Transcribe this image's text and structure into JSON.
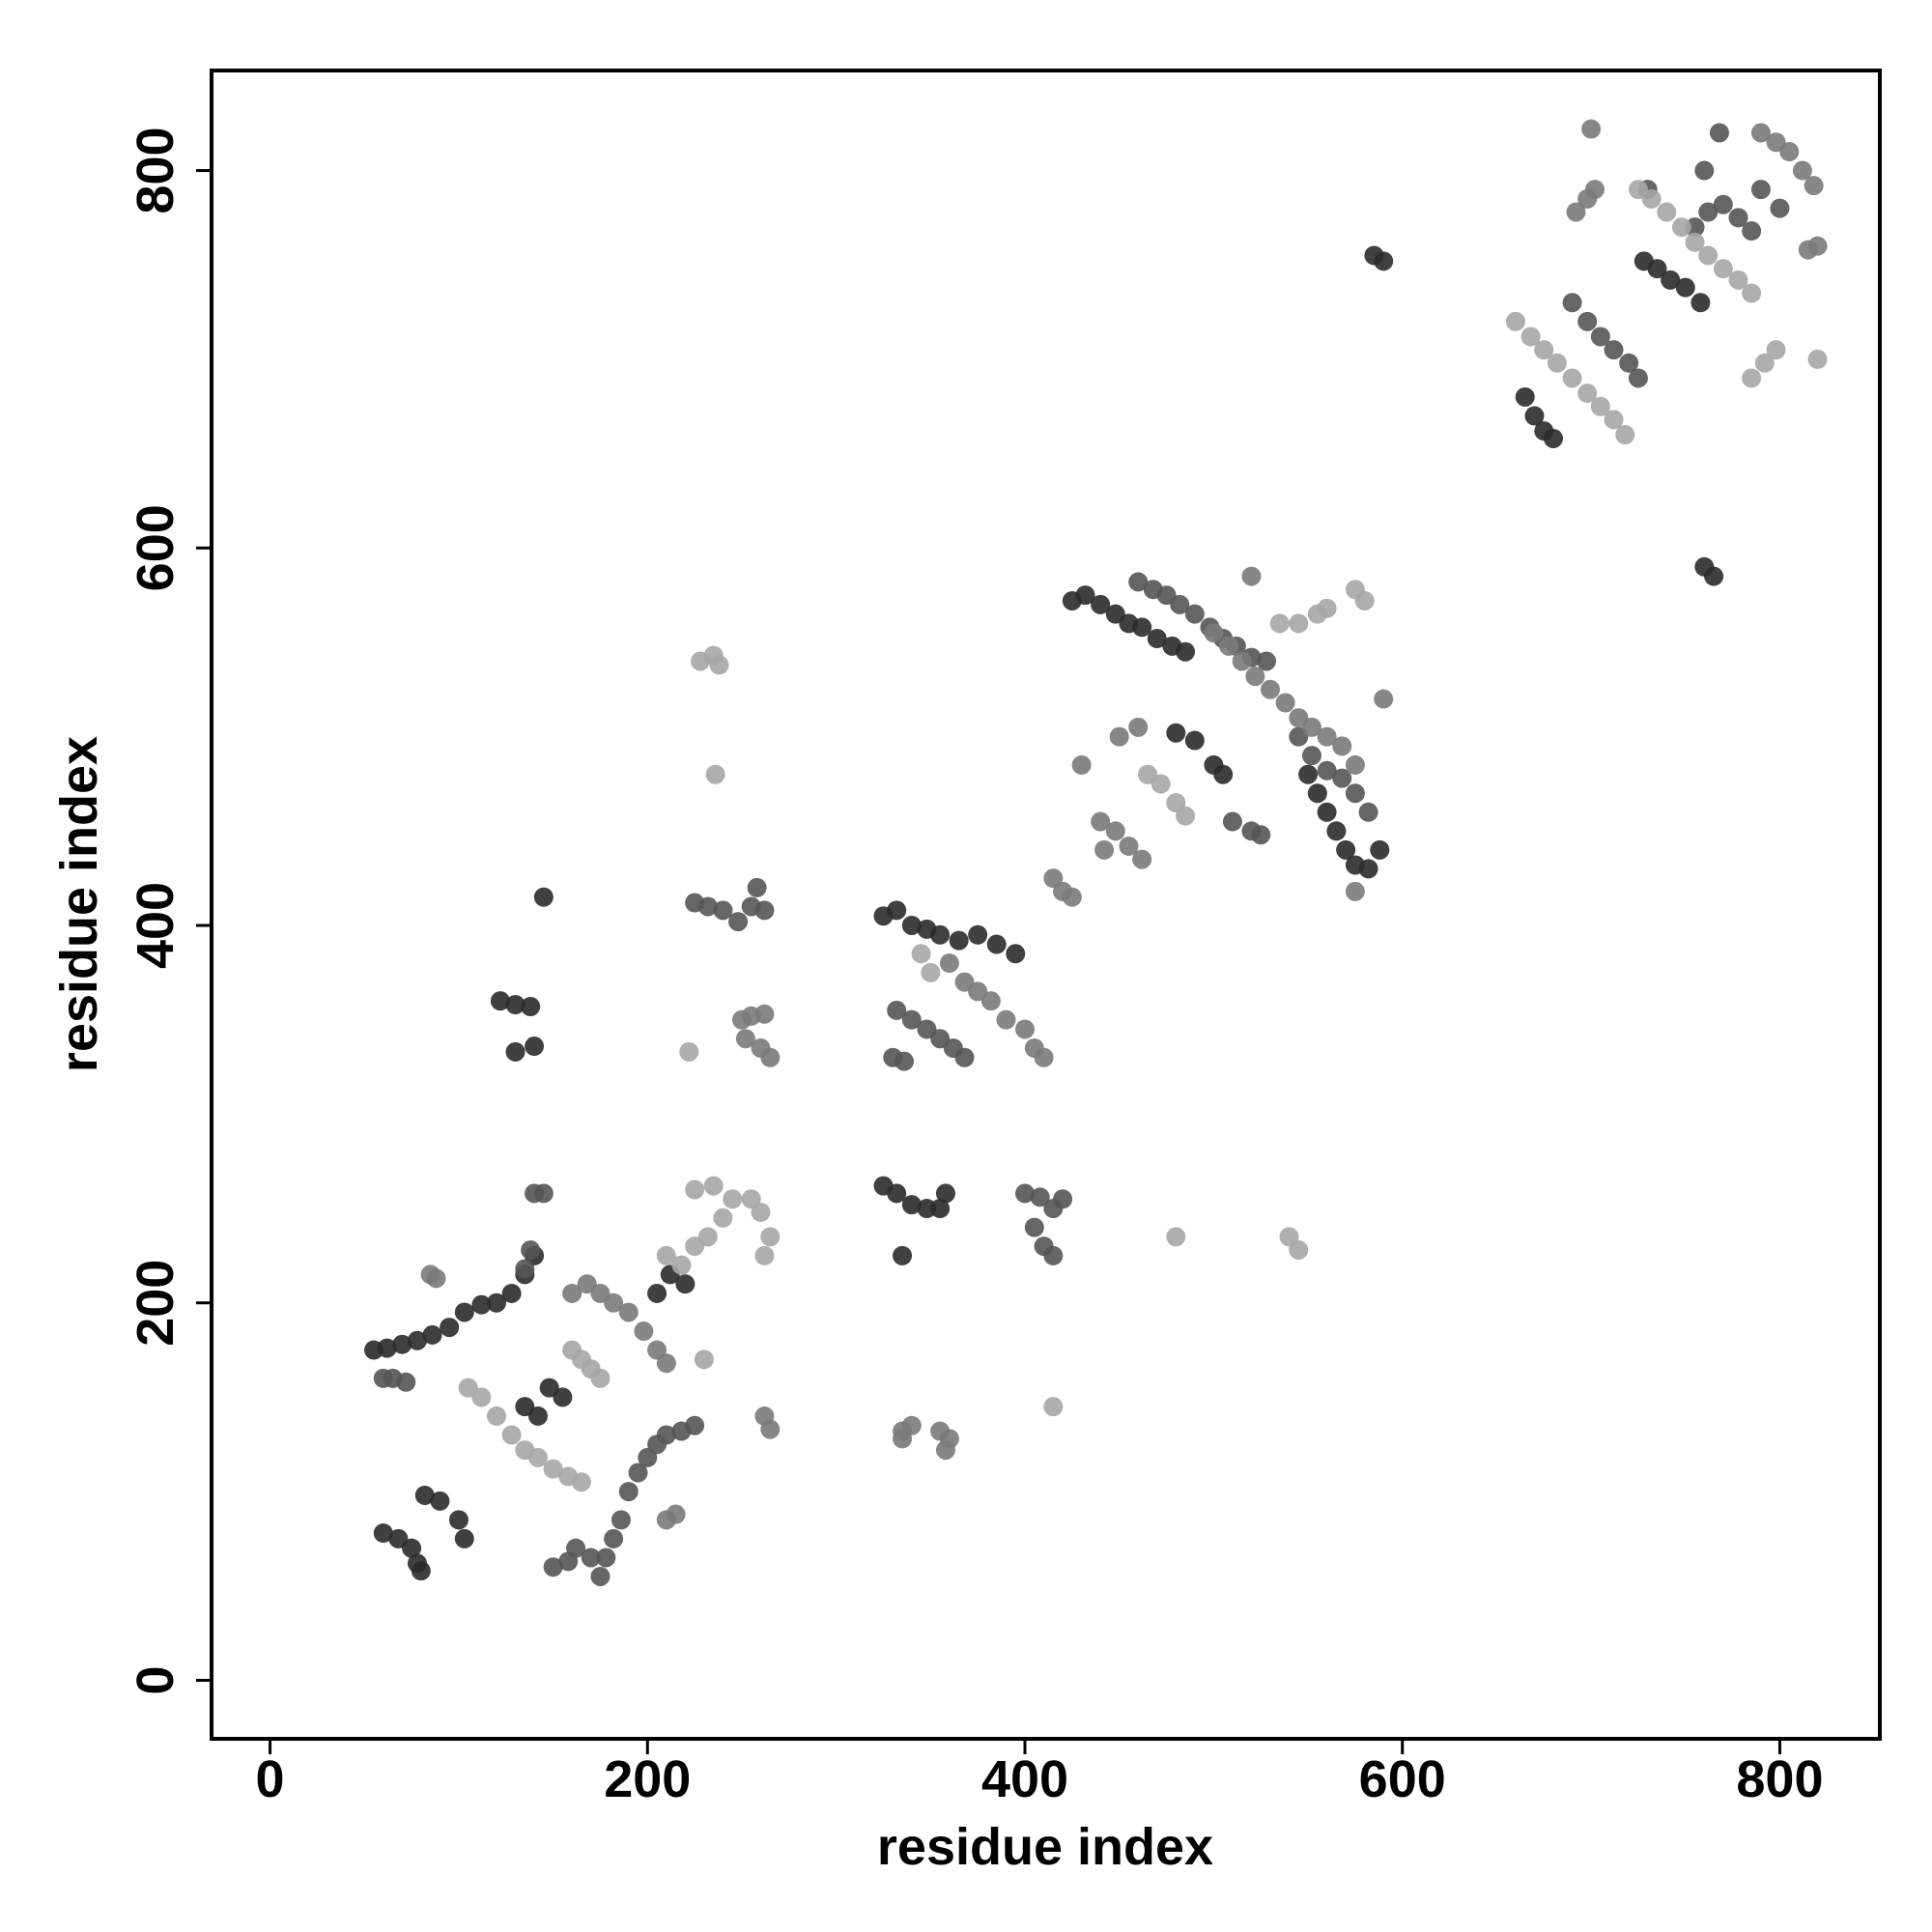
{
  "chart_data": {
    "type": "scatter",
    "x_label": "residue index",
    "y_label": "residue index",
    "xlim": [
      -31,
      853
    ],
    "ylim": [
      -31,
      853
    ],
    "xticks": [
      0,
      200,
      400,
      600,
      800
    ],
    "yticks": [
      0,
      200,
      400,
      600,
      800
    ],
    "grid": false,
    "series": [
      {
        "color": "#2b2b2b",
        "x": [
          55,
          62,
          70,
          78,
          86,
          95,
          103,
          112,
          120,
          128,
          135,
          140,
          60,
          68,
          75,
          78,
          80,
          82,
          90,
          100,
          103,
          135,
          142,
          148,
          155,
          205,
          212,
          220,
          122,
          130,
          138,
          140,
          130,
          145,
          325,
          332,
          340,
          348,
          355,
          365,
          375,
          385,
          395,
          325,
          332,
          340,
          348,
          355,
          358,
          335,
          425,
          432,
          440,
          448,
          455,
          462,
          470,
          478,
          485,
          550,
          555,
          560,
          565,
          570,
          575,
          582,
          588,
          480,
          490,
          500,
          505,
          665,
          670,
          675,
          680,
          728,
          735,
          742,
          750,
          758,
          585,
          590,
          760,
          765
        ],
        "values": [
          175,
          176,
          178,
          180,
          183,
          187,
          195,
          199,
          200,
          205,
          215,
          225,
          78,
          75,
          70,
          62,
          58,
          98,
          95,
          85,
          75,
          145,
          140,
          155,
          150,
          205,
          215,
          210,
          360,
          358,
          357,
          336,
          333,
          415,
          405,
          408,
          400,
          398,
          395,
          392,
          395,
          390,
          385,
          262,
          258,
          252,
          250,
          250,
          258,
          225,
          572,
          575,
          570,
          565,
          560,
          558,
          552,
          548,
          545,
          480,
          470,
          460,
          450,
          440,
          432,
          430,
          440,
          502,
          498,
          485,
          480,
          680,
          670,
          662,
          658,
          752,
          748,
          742,
          738,
          730,
          755,
          752,
          590,
          585
        ]
      },
      {
        "color": "#555555",
        "x": [
          60,
          65,
          72,
          150,
          158,
          162,
          170,
          175,
          178,
          182,
          186,
          190,
          195,
          200,
          205,
          210,
          218,
          225,
          145,
          140,
          138,
          135,
          225,
          232,
          240,
          248,
          255,
          262,
          258,
          330,
          336,
          332,
          340,
          348,
          355,
          362,
          368,
          400,
          408,
          415,
          420,
          405,
          410,
          415,
          460,
          468,
          475,
          482,
          490,
          498,
          505,
          512,
          520,
          528,
          545,
          552,
          560,
          568,
          575,
          582,
          510,
          520,
          525,
          690,
          698,
          705,
          712,
          720,
          725,
          755,
          762,
          770,
          778,
          785,
          730,
          760,
          768,
          790,
          800
        ],
        "values": [
          160,
          160,
          158,
          60,
          63,
          70,
          65,
          55,
          65,
          75,
          85,
          100,
          110,
          118,
          125,
          130,
          132,
          135,
          258,
          258,
          228,
          218,
          412,
          410,
          408,
          402,
          410,
          408,
          420,
          330,
          328,
          355,
          350,
          345,
          340,
          335,
          330,
          258,
          256,
          250,
          255,
          240,
          230,
          225,
          582,
          578,
          575,
          570,
          565,
          558,
          552,
          548,
          542,
          540,
          500,
          490,
          482,
          478,
          470,
          460,
          455,
          450,
          448,
          730,
          720,
          712,
          705,
          698,
          690,
          770,
          778,
          782,
          775,
          768,
          790,
          800,
          820,
          790,
          780
        ]
      },
      {
        "color": "#7a7a7a",
        "x": [
          85,
          88,
          160,
          168,
          175,
          182,
          190,
          198,
          205,
          210,
          215,
          210,
          262,
          265,
          250,
          255,
          262,
          252,
          260,
          265,
          360,
          368,
          375,
          382,
          390,
          400,
          405,
          410,
          335,
          340,
          335,
          355,
          360,
          358,
          500,
          508,
          515,
          522,
          530,
          538,
          545,
          552,
          560,
          568,
          575,
          440,
          448,
          455,
          462,
          442,
          415,
          420,
          425,
          430,
          450,
          460,
          520,
          590,
          575,
          692,
          698,
          702,
          700,
          790,
          798,
          805,
          812,
          818,
          820,
          815
        ],
        "values": [
          215,
          213,
          205,
          210,
          205,
          200,
          195,
          185,
          175,
          168,
          88,
          85,
          140,
          133,
          350,
          352,
          353,
          340,
          335,
          330,
          380,
          370,
          365,
          360,
          350,
          345,
          335,
          330,
          132,
          135,
          128,
          132,
          128,
          122,
          555,
          548,
          540,
          532,
          525,
          518,
          510,
          505,
          500,
          495,
          485,
          455,
          450,
          442,
          435,
          440,
          425,
          418,
          415,
          485,
          500,
          505,
          585,
          520,
          418,
          778,
          785,
          790,
          822,
          820,
          815,
          810,
          800,
          792,
          760,
          758
        ]
      },
      {
        "color": "#a6a6a6",
        "x": [
          105,
          112,
          120,
          128,
          135,
          142,
          150,
          158,
          165,
          160,
          165,
          170,
          175,
          210,
          218,
          225,
          232,
          240,
          225,
          235,
          245,
          255,
          260,
          265,
          262,
          230,
          222,
          228,
          235,
          238,
          236,
          345,
          350,
          415,
          480,
          540,
          545,
          535,
          545,
          555,
          560,
          575,
          580,
          465,
          472,
          480,
          485,
          660,
          668,
          675,
          682,
          690,
          698,
          705,
          712,
          718,
          725,
          732,
          740,
          748,
          755,
          762,
          770,
          778,
          785,
          785,
          792,
          798,
          820
        ],
        "values": [
          155,
          150,
          140,
          130,
          122,
          118,
          112,
          108,
          105,
          175,
          170,
          165,
          160,
          225,
          220,
          230,
          235,
          245,
          260,
          262,
          255,
          255,
          248,
          235,
          225,
          170,
          333,
          540,
          543,
          538,
          480,
          385,
          375,
          145,
          235,
          235,
          228,
          560,
          560,
          565,
          568,
          578,
          572,
          480,
          475,
          465,
          458,
          720,
          712,
          705,
          698,
          690,
          682,
          675,
          668,
          660,
          790,
          785,
          778,
          770,
          762,
          755,
          748,
          742,
          735,
          690,
          698,
          705,
          700
        ]
      }
    ]
  }
}
